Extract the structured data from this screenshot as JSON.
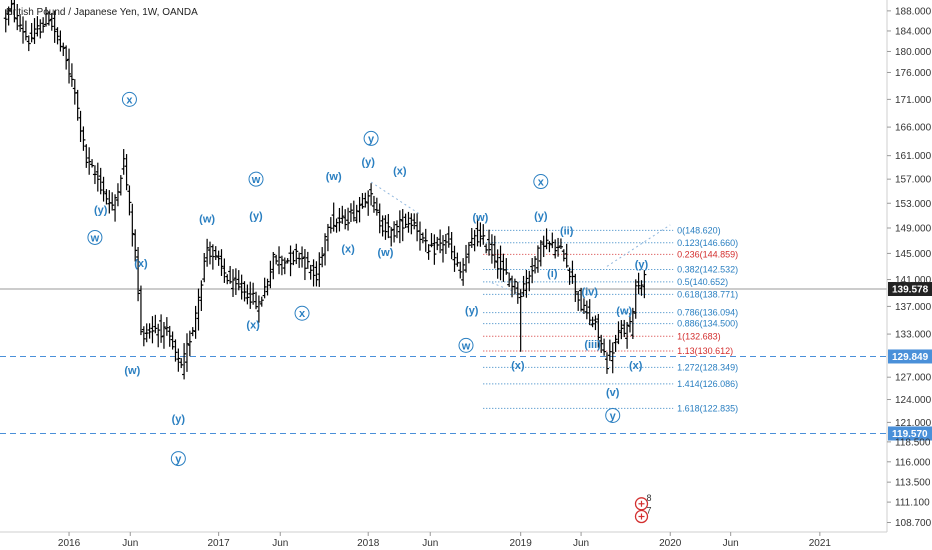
{
  "chart_data": {
    "type": "ohlc",
    "title": "British Pound / Japanese Yen, 1W, OANDA",
    "colors": {
      "bars": "#000000",
      "wave": "#2a7fc1",
      "fib_blue": "#2a7fc1",
      "fib_red": "#d32f2f",
      "dashed_level": "#4a90d9",
      "last_price_bg": "#222222"
    },
    "y_axis": {
      "side": "right",
      "scale": "log",
      "range": [
        107.6,
        190.2
      ],
      "ticks": [
        "188.000",
        "184.000",
        "180.000",
        "176.000",
        "171.000",
        "166.000",
        "161.000",
        "157.000",
        "153.000",
        "149.000",
        "145.000",
        "141.000",
        "137.000",
        "133.000",
        "127.000",
        "124.000",
        "121.000",
        "118.500",
        "116.000",
        "113.500",
        "111.100",
        "108.700"
      ]
    },
    "x_axis": {
      "range": [
        "2015-07-20",
        "2021-06-14"
      ],
      "ticks": [
        {
          "label": "2016",
          "date": "2016-01-04"
        },
        {
          "label": "Jun",
          "date": "2016-06-01"
        },
        {
          "label": "2017",
          "date": "2017-01-02"
        },
        {
          "label": "Jun",
          "date": "2017-06-01"
        },
        {
          "label": "2018",
          "date": "2018-01-01"
        },
        {
          "label": "Jun",
          "date": "2018-06-01"
        },
        {
          "label": "2019",
          "date": "2019-01-07"
        },
        {
          "label": "Jun",
          "date": "2019-06-03"
        },
        {
          "label": "2020",
          "date": "2020-01-06"
        },
        {
          "label": "Jun",
          "date": "2020-06-01"
        },
        {
          "label": "2021",
          "date": "2021-01-04"
        }
      ]
    },
    "anchors": [
      [
        "2015-08-03",
        186
      ],
      [
        "2015-08-24",
        188.5
      ],
      [
        "2015-10-05",
        182
      ],
      [
        "2015-11-23",
        187
      ],
      [
        "2016-01-04",
        178
      ],
      [
        "2016-01-25",
        172
      ],
      [
        "2016-02-22",
        160
      ],
      [
        "2016-03-21",
        157
      ],
      [
        "2016-04-25",
        152
      ],
      [
        "2016-05-23",
        160
      ],
      [
        "2016-06-20",
        145
      ],
      [
        "2016-07-04",
        133
      ],
      [
        "2016-08-08",
        134
      ],
      [
        "2016-09-05",
        133
      ],
      [
        "2016-10-10",
        128
      ],
      [
        "2016-11-07",
        134
      ],
      [
        "2016-12-12",
        146
      ],
      [
        "2017-01-02",
        144
      ],
      [
        "2017-02-13",
        140
      ],
      [
        "2017-03-20",
        139
      ],
      [
        "2017-04-17",
        137
      ],
      [
        "2017-05-22",
        144
      ],
      [
        "2017-06-26",
        144
      ],
      [
        "2017-07-24",
        145
      ],
      [
        "2017-09-04",
        141
      ],
      [
        "2017-10-02",
        150
      ],
      [
        "2017-11-06",
        150
      ],
      [
        "2017-12-11",
        152
      ],
      [
        "2018-01-08",
        155
      ],
      [
        "2018-02-05",
        150
      ],
      [
        "2018-03-05",
        148
      ],
      [
        "2018-04-02",
        150
      ],
      [
        "2018-04-30",
        150
      ],
      [
        "2018-06-04",
        145
      ],
      [
        "2018-07-16",
        147
      ],
      [
        "2018-08-20",
        142
      ],
      [
        "2018-09-24",
        148
      ],
      [
        "2018-10-29",
        146
      ],
      [
        "2018-12-03",
        142
      ],
      [
        "2019-01-14",
        139
      ],
      [
        "2019-02-11",
        143
      ],
      [
        "2019-03-11",
        147
      ],
      [
        "2019-04-01",
        146
      ],
      [
        "2019-04-29",
        145
      ],
      [
        "2019-05-20",
        141
      ],
      [
        "2019-06-10",
        137
      ],
      [
        "2019-07-15",
        134
      ],
      [
        "2019-08-12",
        129
      ],
      [
        "2019-09-09",
        133
      ],
      [
        "2019-10-07",
        134
      ],
      [
        "2019-10-21",
        140
      ],
      [
        "2019-11-04",
        141
      ]
    ],
    "spikes": [
      {
        "date": "2019-01-07",
        "low": 130.5
      }
    ],
    "wave_labels": [
      {
        "text": "(y)",
        "date": "2016-03-21",
        "price": 152,
        "style": "plain"
      },
      {
        "text": "x",
        "date": "2016-05-30",
        "price": 171,
        "style": "circle"
      },
      {
        "text": "w",
        "date": "2016-03-07",
        "price": 147.5,
        "style": "circle"
      },
      {
        "text": "(x)",
        "date": "2016-06-27",
        "price": 143.5,
        "style": "plain"
      },
      {
        "text": "(w)",
        "date": "2016-06-06",
        "price": 128,
        "style": "plain"
      },
      {
        "text": "(y)",
        "date": "2016-09-26",
        "price": 121.5,
        "style": "plain"
      },
      {
        "text": "y",
        "date": "2016-09-26",
        "price": 116.4,
        "style": "circle"
      },
      {
        "text": "(w)",
        "date": "2016-12-05",
        "price": 150.5,
        "style": "plain"
      },
      {
        "text": "w",
        "date": "2017-04-03",
        "price": 157,
        "style": "circle"
      },
      {
        "text": "(y)",
        "date": "2017-04-03",
        "price": 151,
        "style": "plain"
      },
      {
        "text": "(x)",
        "date": "2017-03-27",
        "price": 134.4,
        "style": "plain"
      },
      {
        "text": "x",
        "date": "2017-07-24",
        "price": 136,
        "style": "circle"
      },
      {
        "text": "(w)",
        "date": "2017-10-09",
        "price": 157.5,
        "style": "plain"
      },
      {
        "text": "(x)",
        "date": "2017-11-13",
        "price": 145.8,
        "style": "plain"
      },
      {
        "text": "(y)",
        "date": "2018-01-01",
        "price": 160,
        "style": "plain"
      },
      {
        "text": "y",
        "date": "2018-01-08",
        "price": 164,
        "style": "circle"
      },
      {
        "text": "(w)",
        "date": "2018-02-12",
        "price": 145.2,
        "style": "plain"
      },
      {
        "text": "(x)",
        "date": "2018-03-19",
        "price": 158.5,
        "style": "plain"
      },
      {
        "text": "(w)",
        "date": "2018-10-01",
        "price": 150.8,
        "style": "plain"
      },
      {
        "text": "(y)",
        "date": "2018-09-10",
        "price": 136.5,
        "style": "plain"
      },
      {
        "text": "w",
        "date": "2018-08-27",
        "price": 131.4,
        "style": "circle"
      },
      {
        "text": "(x)",
        "date": "2018-12-31",
        "price": 128.7,
        "style": "plain"
      },
      {
        "text": "x",
        "date": "2019-02-25",
        "price": 156.6,
        "style": "circle"
      },
      {
        "text": "(y)",
        "date": "2019-02-25",
        "price": 151,
        "style": "plain"
      },
      {
        "text": "(ii)",
        "date": "2019-04-29",
        "price": 148.6,
        "style": "plain"
      },
      {
        "text": "(i)",
        "date": "2019-03-25",
        "price": 142,
        "style": "plain"
      },
      {
        "text": "(iv)",
        "date": "2019-06-24",
        "price": 139.2,
        "style": "plain"
      },
      {
        "text": "(iii)",
        "date": "2019-07-01",
        "price": 131.6,
        "style": "plain"
      },
      {
        "text": "(v)",
        "date": "2019-08-19",
        "price": 125,
        "style": "plain"
      },
      {
        "text": "y",
        "date": "2019-08-19",
        "price": 121.9,
        "style": "circle"
      },
      {
        "text": "(w)",
        "date": "2019-09-16",
        "price": 136.4,
        "style": "plain"
      },
      {
        "text": "(x)",
        "date": "2019-10-14",
        "price": 128.7,
        "style": "plain"
      },
      {
        "text": "(y)",
        "date": "2019-10-28",
        "price": 143.4,
        "style": "plain"
      }
    ],
    "fib_retracement": {
      "x_start": "2018-10-08",
      "x_end": "2020-01-13",
      "levels": [
        {
          "label": "0(148.620)",
          "price": 148.62,
          "color": "blue"
        },
        {
          "label": "0.123(146.660)",
          "price": 146.66,
          "color": "blue"
        },
        {
          "label": "0.236(144.859)",
          "price": 144.859,
          "color": "red"
        },
        {
          "label": "0.382(142.532)",
          "price": 142.532,
          "color": "blue"
        },
        {
          "label": "0.5(140.652)",
          "price": 140.652,
          "color": "blue"
        },
        {
          "label": "0.618(138.771)",
          "price": 138.771,
          "color": "blue"
        },
        {
          "label": "0.786(136.094)",
          "price": 136.094,
          "color": "blue"
        },
        {
          "label": "0.886(134.500)",
          "price": 134.5,
          "color": "blue"
        },
        {
          "label": "1(132.683)",
          "price": 132.683,
          "color": "red"
        },
        {
          "label": "1.13(130.612)",
          "price": 130.612,
          "color": "red"
        },
        {
          "label": "1.272(128.349)",
          "price": 128.349,
          "color": "blue"
        },
        {
          "label": "1.414(126.086)",
          "price": 126.086,
          "color": "blue"
        },
        {
          "label": "1.618(122.835)",
          "price": 122.835,
          "color": "blue"
        }
      ]
    },
    "dotted_connectors": [
      {
        "from": [
          "2018-01-08",
          156.5
        ],
        "to": [
          "2018-05-07",
          151.2
        ]
      },
      {
        "from": [
          "2018-10-29",
          140.5
        ],
        "to": [
          "2019-01-14",
          138.6
        ]
      },
      {
        "from": [
          "2019-08-05",
          143.0
        ],
        "to": [
          "2020-01-06",
          149.5
        ]
      }
    ],
    "horizontal_levels": [
      {
        "price": 129.849,
        "label": "129.849",
        "style": "dashed"
      },
      {
        "price": 119.57,
        "label": "119.570",
        "style": "dashed"
      }
    ],
    "last_price": {
      "price": 139.578,
      "label": "139.578"
    },
    "event_markers": [
      {
        "date": "2019-10-28",
        "price": 110.9,
        "count": "8"
      },
      {
        "date": "2019-10-28",
        "price": 109.4,
        "count": "7"
      }
    ]
  }
}
